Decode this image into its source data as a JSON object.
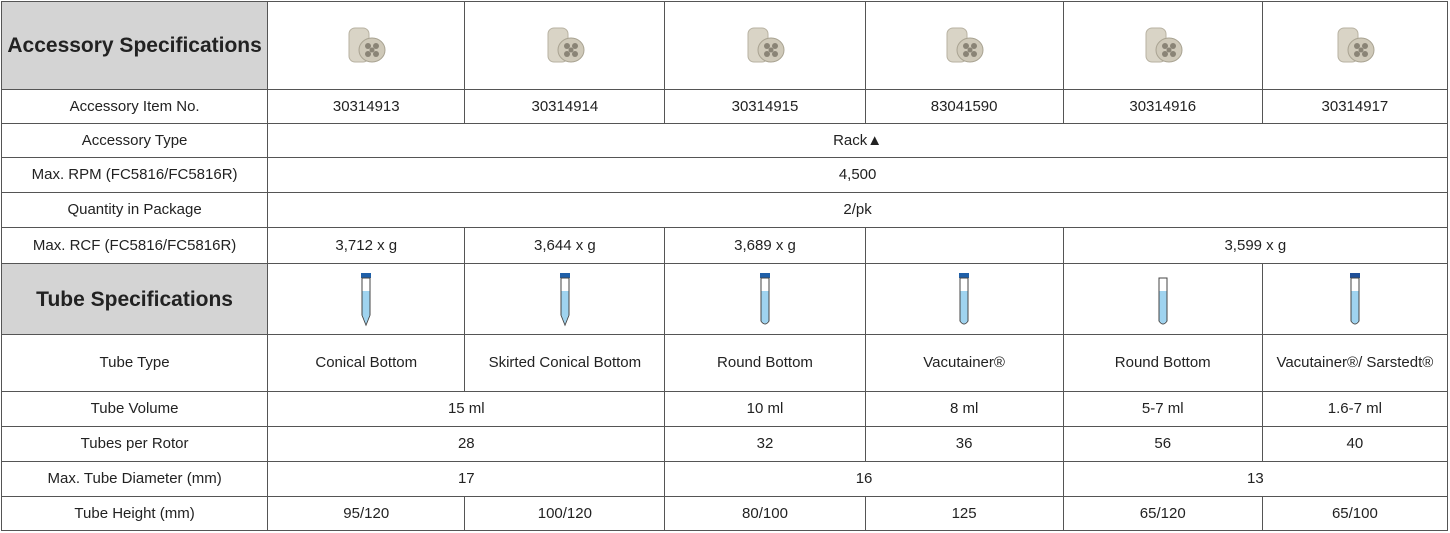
{
  "accessory_header": "Accessory Specifications",
  "tube_header": "Tube Specifications",
  "rows": [
    {
      "label": "Accessory Item No.",
      "cells": [
        "30314913",
        "30314914",
        "30314915",
        "83041590",
        "30314916",
        "30314917"
      ]
    },
    {
      "label": "Accessory Type",
      "cells": [
        "Rack▲"
      ]
    },
    {
      "label": "Max. RPM (FC5816/FC5816R)",
      "cells": [
        "4,500"
      ]
    },
    {
      "label": "Quantity in Package",
      "cells": [
        "2/pk"
      ]
    },
    {
      "label": "Max. RCF (FC5816/FC5816R)",
      "cells": [
        "3,712 x g",
        "3,644 x g",
        "3,689 x g",
        "3,599 x g"
      ]
    },
    {
      "label": "Tube Type",
      "cells": [
        "Conical Bottom",
        "Skirted Conical Bottom",
        "Round Bottom",
        "Vacutainer®",
        "Round Bottom",
        "Vacutainer®/ Sarstedt®"
      ]
    },
    {
      "label": "Tube Volume",
      "cells": [
        "15 ml",
        "10 ml",
        "8 ml",
        "5-7 ml",
        "1.6-7 ml"
      ]
    },
    {
      "label": "Tubes per Rotor",
      "cells": [
        "28",
        "32",
        "36",
        "56",
        "40"
      ]
    },
    {
      "label": "Max. Tube Diameter (mm)",
      "cells": [
        "17",
        "16",
        "13"
      ]
    },
    {
      "label": "Tube Height (mm)",
      "cells": [
        "95/120",
        "100/120",
        "80/100",
        "125",
        "65/120",
        "65/100"
      ]
    }
  ]
}
